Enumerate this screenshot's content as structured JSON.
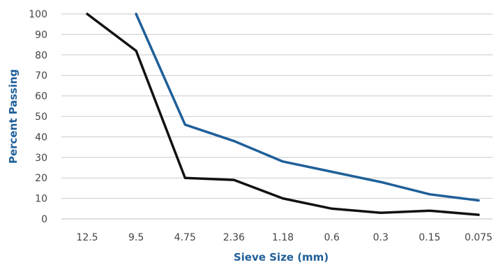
{
  "chart_data": {
    "type": "line",
    "xlabel": "Sieve Size (mm)",
    "ylabel": "Percent Passing",
    "categories": [
      "12.5",
      "9.5",
      "4.75",
      "2.36",
      "1.18",
      "0.6",
      "0.3",
      "0.15",
      "0.075"
    ],
    "yticks": [
      "0",
      "10",
      "20",
      "30",
      "40",
      "50",
      "60",
      "70",
      "80",
      "90",
      "100"
    ],
    "ylim": [
      0,
      100
    ],
    "grid": true,
    "series": [
      {
        "color": "#1f5f99",
        "values": [
          null,
          100,
          46,
          38,
          28,
          23,
          18,
          12,
          9
        ]
      },
      {
        "color": "#111111",
        "values": [
          100,
          82,
          20,
          19,
          10,
          5,
          3,
          4,
          2
        ]
      }
    ]
  },
  "colors": {
    "grid": "#c9c9c9",
    "axis_title": "#1f5f99",
    "tick_text": "#444444"
  }
}
